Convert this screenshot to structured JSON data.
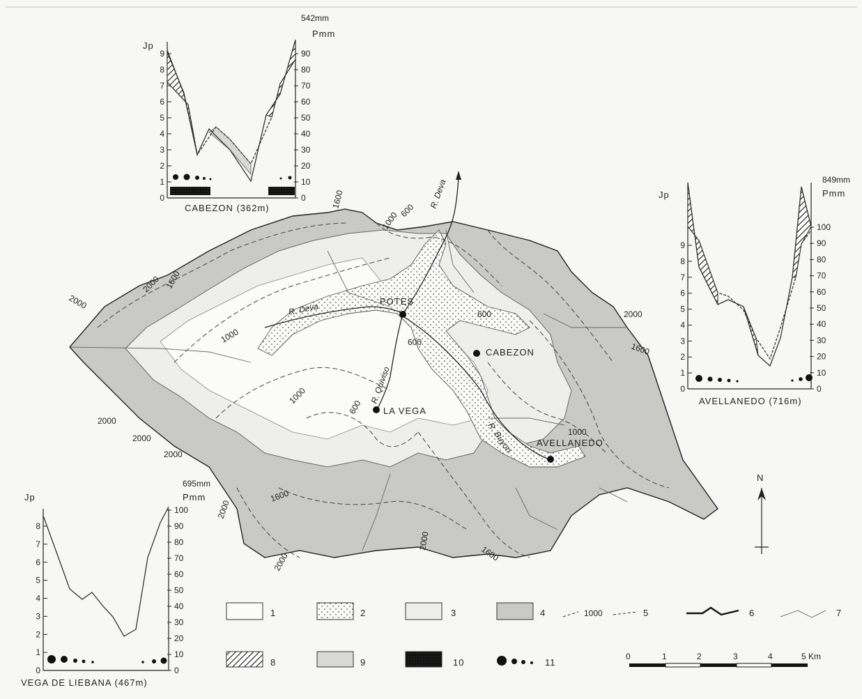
{
  "map": {
    "places": [
      {
        "name": "POTES"
      },
      {
        "name": "CABEZON"
      },
      {
        "name": "LA VEGA"
      },
      {
        "name": "AVELLANEDO"
      }
    ],
    "rivers": [
      "R. Deva",
      "R. Deva",
      "R. Quiviso",
      "R. Buyon"
    ],
    "contours": [
      "600",
      "1000",
      "1600",
      "2000"
    ],
    "north": "N"
  },
  "climographs": [
    {
      "id": "cabezon",
      "station": "CABEZON (362m)",
      "total": "542mm",
      "left_axis": "Jp",
      "right_axis": "Pmm",
      "left_ticks": [
        "0",
        "1",
        "2",
        "3",
        "4",
        "5",
        "6",
        "7",
        "8",
        "9"
      ],
      "right_ticks": [
        "0",
        "10",
        "20",
        "30",
        "40",
        "50",
        "60",
        "70",
        "80",
        "90"
      ]
    },
    {
      "id": "avellanedo",
      "station": "AVELLANEDO (716m)",
      "total": "849mm",
      "left_axis": "Jp",
      "right_axis": "Pmm",
      "left_ticks": [
        "0",
        "1",
        "2",
        "3",
        "4",
        "5",
        "6",
        "7",
        "8",
        "9"
      ],
      "right_ticks": [
        "0",
        "10",
        "20",
        "30",
        "40",
        "50",
        "60",
        "70",
        "80",
        "90",
        "100"
      ]
    },
    {
      "id": "vega",
      "station": "VEGA DE LIEBANA (467m)",
      "total": "695mm",
      "left_axis": "Jp",
      "right_axis": "Pmm",
      "left_ticks": [
        "0",
        "1",
        "2",
        "3",
        "4",
        "5",
        "6",
        "7",
        "8"
      ],
      "right_ticks": [
        "0",
        "10",
        "20",
        "30",
        "40",
        "50",
        "60",
        "70",
        "80",
        "90",
        "100"
      ]
    }
  ],
  "legend": {
    "items": [
      {
        "key": "1",
        "label": "1"
      },
      {
        "key": "2",
        "label": "2"
      },
      {
        "key": "3",
        "label": "3"
      },
      {
        "key": "4",
        "label": "4"
      },
      {
        "key": "5",
        "label": "5",
        "sample": "1000"
      },
      {
        "key": "6",
        "label": "6"
      },
      {
        "key": "7",
        "label": "7"
      },
      {
        "key": "8",
        "label": "8"
      },
      {
        "key": "9",
        "label": "9"
      },
      {
        "key": "10",
        "label": "10"
      },
      {
        "key": "11",
        "label": "11"
      }
    ]
  },
  "scale": {
    "ticks": [
      "0",
      "1",
      "2",
      "3",
      "4",
      "5 Km"
    ]
  },
  "colors": {
    "mountain": "#c9c9c6",
    "basin": "#fbfbfa",
    "valley": "#eeeeea",
    "ink": "#222222"
  }
}
